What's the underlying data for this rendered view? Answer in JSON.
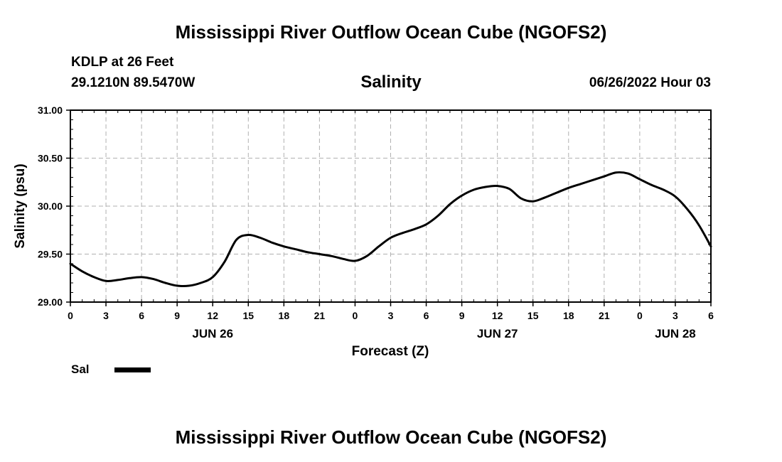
{
  "page": {
    "title": "Mississippi River Outflow Ocean Cube (NGOFS2)",
    "footer_title": "Mississippi River Outflow Ocean Cube (NGOFS2)",
    "station": "KDLP at 26 Feet",
    "location": "29.1210N  89.5470W",
    "subtitle": "Salinity",
    "datetime": "06/26/2022 Hour 03"
  },
  "chart_data": {
    "type": "line",
    "title": "Salinity",
    "xlabel": "Forecast (Z)",
    "ylabel": "Salinity (psu)",
    "xlim": [
      0,
      54
    ],
    "ylim": [
      29.0,
      31.0
    ],
    "grid": true,
    "y_ticks": [
      "29.00",
      "29.50",
      "30.00",
      "30.50",
      "31.00"
    ],
    "y_tick_values": [
      29.0,
      29.5,
      30.0,
      30.5,
      31.0
    ],
    "x_ticks": [
      {
        "hour": 0,
        "label": "0"
      },
      {
        "hour": 3,
        "label": "3"
      },
      {
        "hour": 6,
        "label": "6"
      },
      {
        "hour": 9,
        "label": "9"
      },
      {
        "hour": 12,
        "label": "12"
      },
      {
        "hour": 15,
        "label": "15"
      },
      {
        "hour": 18,
        "label": "18"
      },
      {
        "hour": 21,
        "label": "21"
      },
      {
        "hour": 24,
        "label": "0"
      },
      {
        "hour": 27,
        "label": "3"
      },
      {
        "hour": 30,
        "label": "6"
      },
      {
        "hour": 33,
        "label": "9"
      },
      {
        "hour": 36,
        "label": "12"
      },
      {
        "hour": 39,
        "label": "15"
      },
      {
        "hour": 42,
        "label": "18"
      },
      {
        "hour": 45,
        "label": "21"
      },
      {
        "hour": 48,
        "label": "0"
      },
      {
        "hour": 51,
        "label": "3"
      },
      {
        "hour": 54,
        "label": "6"
      }
    ],
    "day_labels": [
      {
        "hour": 12,
        "label": "JUN 26"
      },
      {
        "hour": 36,
        "label": "JUN 27"
      },
      {
        "hour": 51,
        "label": "JUN 28"
      }
    ],
    "legend": {
      "label": "Sal",
      "placement": "bottom-left"
    },
    "series": [
      {
        "name": "Sal",
        "x": [
          0,
          1,
          2,
          3,
          4,
          5,
          6,
          7,
          8,
          9,
          10,
          11,
          12,
          13,
          14,
          15,
          16,
          17,
          18,
          19,
          20,
          21,
          22,
          23,
          24,
          25,
          26,
          27,
          28,
          29,
          30,
          31,
          32,
          33,
          34,
          35,
          36,
          37,
          38,
          39,
          40,
          41,
          42,
          43,
          44,
          45,
          46,
          47,
          48,
          49,
          50,
          51,
          52,
          53,
          54
        ],
        "values": [
          29.4,
          29.32,
          29.26,
          29.22,
          29.23,
          29.25,
          29.26,
          29.24,
          29.2,
          29.17,
          29.17,
          29.2,
          29.26,
          29.42,
          29.65,
          29.7,
          29.67,
          29.62,
          29.58,
          29.55,
          29.52,
          29.5,
          29.48,
          29.45,
          29.43,
          29.48,
          29.58,
          29.67,
          29.72,
          29.76,
          29.81,
          29.9,
          30.02,
          30.11,
          30.17,
          30.2,
          30.21,
          30.18,
          30.08,
          30.05,
          30.09,
          30.14,
          30.19,
          30.23,
          30.27,
          30.31,
          30.35,
          30.34,
          30.28,
          30.22,
          30.17,
          30.1,
          29.97,
          29.8,
          29.58
        ]
      }
    ]
  }
}
